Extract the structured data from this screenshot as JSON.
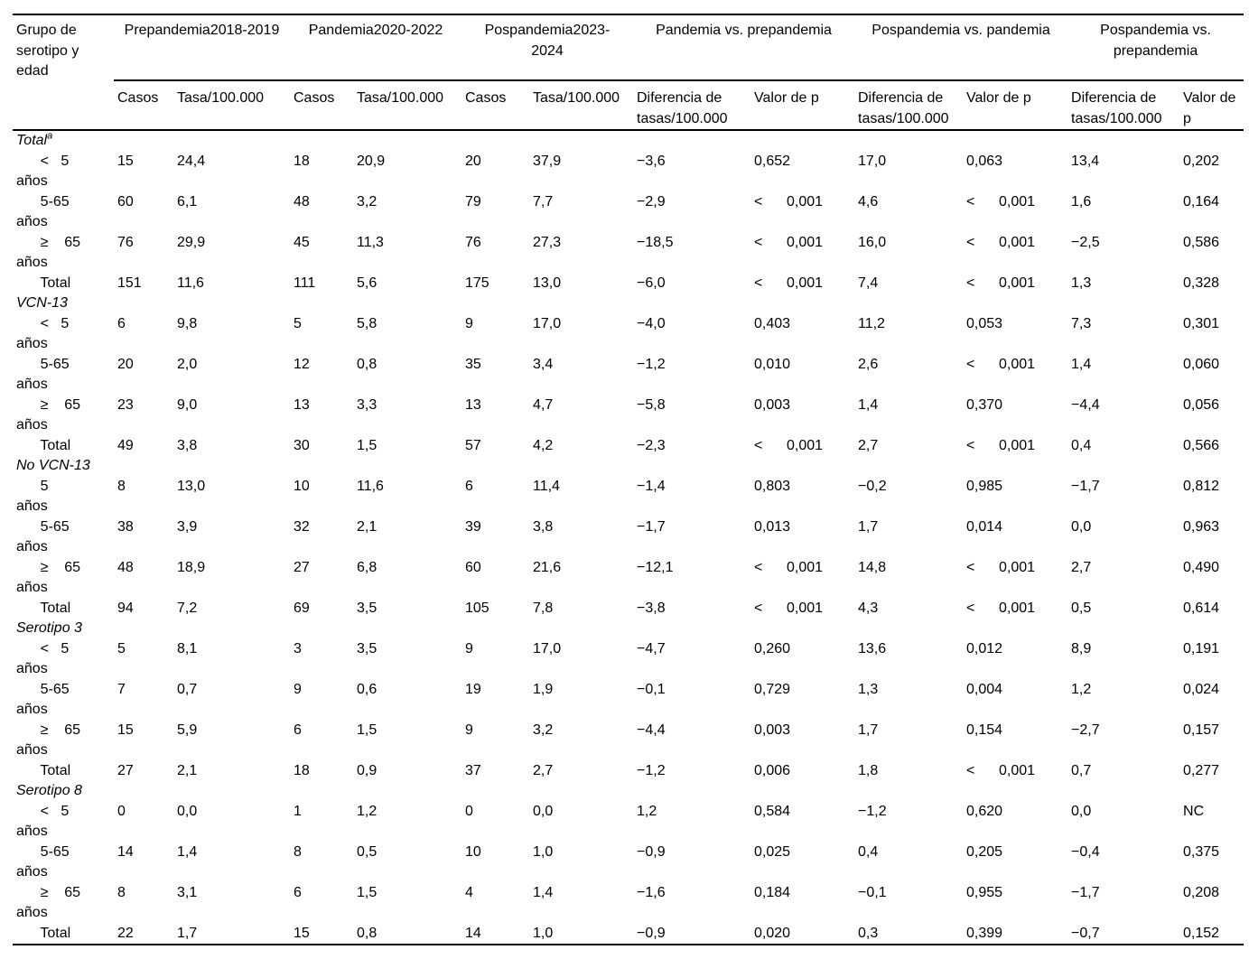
{
  "table": {
    "corner_header": "Grupo de serotipo y edad",
    "period_headers": [
      "Prepandemia2018-2019",
      "Pandemia2020-2022",
      "Pospandemia2023-2024",
      "Pandemia vs. prepandemia",
      "Pospandemia vs. pandemia",
      "Pospandemia vs. prepandemia"
    ],
    "sub_headers": [
      "Casos",
      "Tasa/100.000",
      "Casos",
      "Tasa/100.000",
      "Casos",
      "Tasa/100.000",
      "Diferencia de tasas/100.000",
      "Valor de p",
      "Diferencia de tasas/100.000",
      "Valor de p",
      "Diferencia de tasas/100.000",
      "Valor de p"
    ],
    "groups": [
      {
        "name": "Total",
        "superscript": "a",
        "rows": [
          {
            "label_lines": [
              "      <   5",
              "años"
            ],
            "values": [
              "15",
              "24,4",
              "18",
              "20,9",
              "20",
              "37,9",
              "−3,6",
              "0,652",
              "17,0",
              "0,063",
              "13,4",
              "0,202"
            ]
          },
          {
            "label_lines": [
              "      5-65",
              "años"
            ],
            "values": [
              "60",
              "6,1",
              "48",
              "3,2",
              "79",
              "7,7",
              "−2,9",
              "<      0,001",
              "4,6",
              "<      0,001",
              "1,6",
              "0,164"
            ]
          },
          {
            "label_lines": [
              "      ≥    65",
              "años"
            ],
            "values": [
              "76",
              "29,9",
              "45",
              "11,3",
              "76",
              "27,3",
              "−18,5",
              "<      0,001",
              "16,0",
              "<      0,001",
              "−2,5",
              "0,586"
            ]
          },
          {
            "label_lines": [
              "      Total"
            ],
            "values": [
              "151",
              "11,6",
              "111",
              "5,6",
              "175",
              "13,0",
              "−6,0",
              "<      0,001",
              "7,4",
              "<      0,001",
              "1,3",
              "0,328"
            ]
          }
        ]
      },
      {
        "name": "VCN-13",
        "superscript": "",
        "rows": [
          {
            "label_lines": [
              "      <   5",
              "años"
            ],
            "values": [
              "6",
              "9,8",
              "5",
              "5,8",
              "9",
              "17,0",
              "−4,0",
              "0,403",
              "11,2",
              "0,053",
              "7,3",
              "0,301"
            ]
          },
          {
            "label_lines": [
              "      5-65",
              "años"
            ],
            "values": [
              "20",
              "2,0",
              "12",
              "0,8",
              "35",
              "3,4",
              "−1,2",
              "0,010",
              "2,6",
              "<      0,001",
              "1,4",
              "0,060"
            ]
          },
          {
            "label_lines": [
              "      ≥    65",
              "años"
            ],
            "values": [
              "23",
              "9,0",
              "13",
              "3,3",
              "13",
              "4,7",
              "−5,8",
              "0,003",
              "1,4",
              "0,370",
              "−4,4",
              "0,056"
            ]
          },
          {
            "label_lines": [
              "      Total"
            ],
            "values": [
              "49",
              "3,8",
              "30",
              "1,5",
              "57",
              "4,2",
              "−2,3",
              "<      0,001",
              "2,7",
              "<      0,001",
              "0,4",
              "0,566"
            ]
          }
        ]
      },
      {
        "name": "No VCN-13",
        "superscript": "",
        "rows": [
          {
            "label_lines": [
              "      5",
              "años"
            ],
            "values": [
              "8",
              "13,0",
              "10",
              "11,6",
              "6",
              "11,4",
              "−1,4",
              "0,803",
              "−0,2",
              "0,985",
              "−1,7",
              "0,812"
            ]
          },
          {
            "label_lines": [
              "      5-65",
              "años"
            ],
            "values": [
              "38",
              "3,9",
              "32",
              "2,1",
              "39",
              "3,8",
              "−1,7",
              "0,013",
              "1,7",
              "0,014",
              "0,0",
              "0,963"
            ]
          },
          {
            "label_lines": [
              "      ≥    65",
              "años"
            ],
            "values": [
              "48",
              "18,9",
              "27",
              "6,8",
              "60",
              "21,6",
              "−12,1",
              "<      0,001",
              "14,8",
              "<      0,001",
              "2,7",
              "0,490"
            ]
          },
          {
            "label_lines": [
              "      Total"
            ],
            "values": [
              "94",
              "7,2",
              "69",
              "3,5",
              "105",
              "7,8",
              "−3,8",
              "<      0,001",
              "4,3",
              "<      0,001",
              "0,5",
              "0,614"
            ]
          }
        ]
      },
      {
        "name": "Serotipo 3",
        "superscript": "",
        "rows": [
          {
            "label_lines": [
              "      <   5",
              "años"
            ],
            "values": [
              "5",
              "8,1",
              "3",
              "3,5",
              "9",
              "17,0",
              "−4,7",
              "0,260",
              "13,6",
              "0,012",
              "8,9",
              "0,191"
            ]
          },
          {
            "label_lines": [
              "      5-65",
              "años"
            ],
            "values": [
              "7",
              "0,7",
              "9",
              "0,6",
              "19",
              "1,9",
              "−0,1",
              "0,729",
              "1,3",
              "0,004",
              "1,2",
              "0,024"
            ]
          },
          {
            "label_lines": [
              "      ≥    65",
              "años"
            ],
            "values": [
              "15",
              "5,9",
              "6",
              "1,5",
              "9",
              "3,2",
              "−4,4",
              "0,003",
              "1,7",
              "0,154",
              "−2,7",
              "0,157"
            ]
          },
          {
            "label_lines": [
              "      Total"
            ],
            "values": [
              "27",
              "2,1",
              "18",
              "0,9",
              "37",
              "2,7",
              "−1,2",
              "0,006",
              "1,8",
              "<      0,001",
              "0,7",
              "0,277"
            ]
          }
        ]
      },
      {
        "name": "Serotipo 8",
        "superscript": "",
        "rows": [
          {
            "label_lines": [
              "      <   5",
              "años"
            ],
            "values": [
              "0",
              "0,0",
              "1",
              "1,2",
              "0",
              "0,0",
              "1,2",
              "0,584",
              "−1,2",
              "0,620",
              "0,0",
              "NC"
            ]
          },
          {
            "label_lines": [
              "      5-65",
              "años"
            ],
            "values": [
              "14",
              "1,4",
              "8",
              "0,5",
              "10",
              "1,0",
              "−0,9",
              "0,025",
              "0,4",
              "0,205",
              "−0,4",
              "0,375"
            ]
          },
          {
            "label_lines": [
              "      ≥    65",
              "años"
            ],
            "values": [
              "8",
              "3,1",
              "6",
              "1,5",
              "4",
              "1,4",
              "−1,6",
              "0,184",
              "−0,1",
              "0,955",
              "−1,7",
              "0,208"
            ]
          },
          {
            "label_lines": [
              "      Total"
            ],
            "values": [
              "22",
              "1,7",
              "15",
              "0,8",
              "14",
              "1,0",
              "−0,9",
              "0,020",
              "0,3",
              "0,399",
              "−0,7",
              "0,152"
            ]
          }
        ]
      }
    ]
  },
  "colors": {
    "text": "#000000",
    "rule": "#000000",
    "background": "#ffffff"
  }
}
